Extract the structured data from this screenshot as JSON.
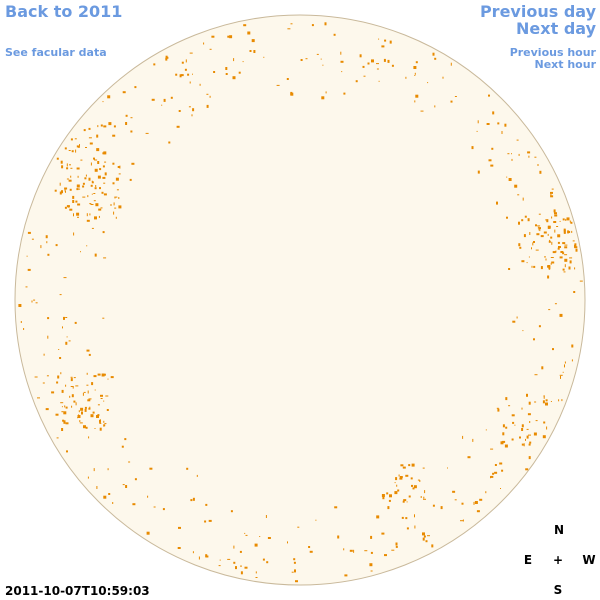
{
  "header": {
    "back": "Back to 2011",
    "facular": "See facular data",
    "previous_day": "Previous day",
    "next_day": "Next day",
    "previous_hour": "Previous hour",
    "next_hour": "Next hour"
  },
  "timestamp": "2011-10-07T10:59:03",
  "compass": {
    "north": "N",
    "east": "E",
    "center": "+",
    "west": "W",
    "south": "S"
  }
}
